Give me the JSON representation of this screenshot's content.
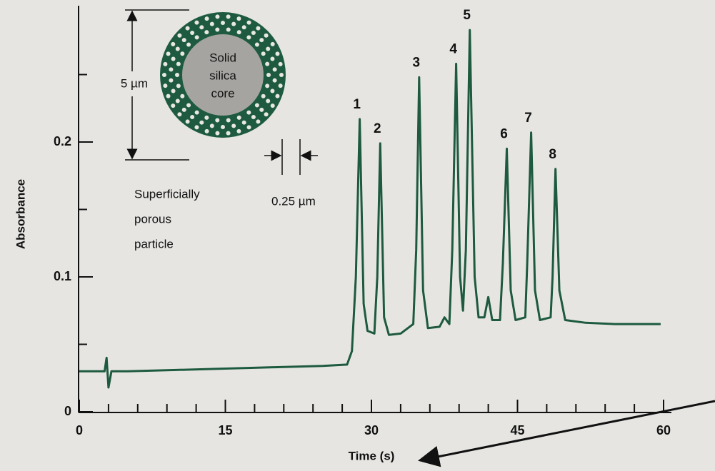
{
  "chart_data": {
    "type": "line",
    "xlabel": "Time (s)",
    "ylabel": "Absorbance",
    "x": [
      0,
      2,
      2.6,
      2.8,
      3.0,
      3.3,
      5,
      10,
      15,
      20,
      25,
      27.5,
      28,
      28.4,
      28.8,
      29.2,
      29.6,
      30.3,
      30.6,
      30.9,
      31.3,
      31.8,
      33,
      34.3,
      34.6,
      34.9,
      35.3,
      35.8,
      37,
      37.5,
      38,
      38.3,
      38.7,
      39.1,
      39.4,
      39.7,
      40.1,
      40.6,
      41,
      41.6,
      42,
      42.4,
      43.2,
      43.5,
      43.9,
      44.3,
      44.8,
      45.8,
      46.0,
      46.4,
      46.8,
      47.3,
      48.4,
      48.6,
      48.9,
      49.3,
      49.9,
      52,
      55,
      59.7
    ],
    "values": [
      0.03,
      0.03,
      0.03,
      0.04,
      0.018,
      0.03,
      0.03,
      0.031,
      0.032,
      0.033,
      0.034,
      0.035,
      0.045,
      0.1,
      0.217,
      0.08,
      0.06,
      0.058,
      0.1,
      0.199,
      0.07,
      0.057,
      0.058,
      0.065,
      0.12,
      0.248,
      0.09,
      0.062,
      0.063,
      0.07,
      0.065,
      0.12,
      0.258,
      0.1,
      0.075,
      0.12,
      0.283,
      0.1,
      0.07,
      0.07,
      0.085,
      0.068,
      0.068,
      0.11,
      0.195,
      0.09,
      0.068,
      0.07,
      0.11,
      0.207,
      0.09,
      0.068,
      0.07,
      0.1,
      0.18,
      0.09,
      0.068,
      0.066,
      0.065,
      0.065
    ],
    "color": "#1d5a3e",
    "xlim": [
      0,
      60
    ],
    "xticks": [
      0,
      15,
      30,
      45,
      60
    ],
    "xminorticks": [
      3,
      6,
      9,
      12,
      18,
      21,
      24,
      27,
      33,
      36,
      39,
      42,
      48,
      51,
      54,
      57
    ],
    "ylim": [
      0,
      0.3
    ],
    "yticks": [
      0,
      0.1,
      0.2
    ],
    "yminorticks": [
      0.05,
      0.15,
      0.25
    ],
    "annotations": [
      {
        "text": "1",
        "x": 28.8
      },
      {
        "text": "2",
        "x": 30.9
      },
      {
        "text": "3",
        "x": 34.9
      },
      {
        "text": "4",
        "x": 38.7
      },
      {
        "text": "5",
        "x": 40.1
      },
      {
        "text": "6",
        "x": 43.9
      },
      {
        "text": "7",
        "x": 46.4
      },
      {
        "text": "8",
        "x": 48.9
      }
    ],
    "inset": {
      "core_label": [
        "Solid",
        "silica",
        "core"
      ],
      "diameter_label": "5 µm",
      "shell_label": "0.25 µm",
      "particle_label": [
        "Superficially",
        "porous",
        "particle"
      ]
    }
  }
}
